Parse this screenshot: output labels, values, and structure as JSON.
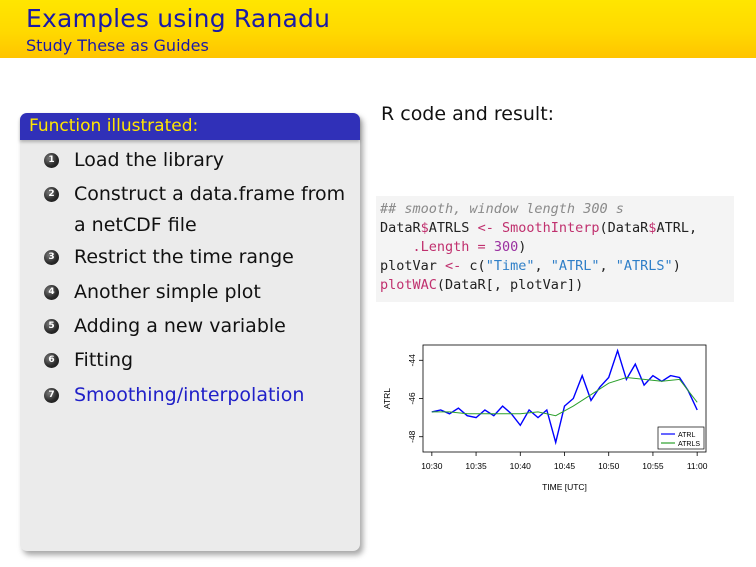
{
  "slide": {
    "title": "Examples using Ranadu",
    "subtitle": "Study These as Guides"
  },
  "block": {
    "title": "Function illustrated:",
    "items": [
      {
        "num": "1",
        "lines": [
          "Load the library"
        ]
      },
      {
        "num": "2",
        "lines": [
          "Construct a data.frame from",
          "a netCDF file"
        ]
      },
      {
        "num": "3",
        "lines": [
          "Restrict the time range"
        ]
      },
      {
        "num": "4",
        "lines": [
          "Another simple plot"
        ]
      },
      {
        "num": "5",
        "lines": [
          "Adding a new variable"
        ]
      },
      {
        "num": "6",
        "lines": [
          "Fitting"
        ]
      },
      {
        "num": "7",
        "lines": [
          "Smoothing/interpolation"
        ]
      }
    ],
    "active_index": 6
  },
  "code_label": "R code and result:",
  "code": {
    "line1": "## smooth, window length 300 s",
    "line2": [
      "DataR",
      "$",
      "ATRLS ",
      "<-",
      " ",
      "SmoothInterp",
      "(DataR",
      "$",
      "ATRL,"
    ],
    "line3": [
      "    .Length ",
      "=",
      " ",
      "300",
      ")"
    ],
    "line4": [
      "plotVar ",
      "<-",
      " c(",
      "\"Time\"",
      ", ",
      "\"ATRL\"",
      ", ",
      "\"ATRLS\"",
      ")"
    ],
    "line5": [
      "plotWAC",
      "(DataR[, plotVar])"
    ]
  },
  "colors": {
    "header_yellow": "#ffd900",
    "title_blue": "#1a1aa8",
    "block_title_bg": "#3030b8",
    "block_title_text": "#ffe600",
    "active_item": "#2020c8",
    "series_ATRL": "#0000ff",
    "series_ATRLS": "#2ca02c"
  },
  "chart_data": {
    "type": "line",
    "xlabel": "TIME [UTC]",
    "ylabel": "ATRL",
    "x_ticks": [
      "10:30",
      "10:35",
      "10:40",
      "10:45",
      "10:50",
      "10:55",
      "11:00"
    ],
    "y_ticks": [
      "-44",
      "-46",
      "-48"
    ],
    "xlim": [
      "10:29",
      "11:01"
    ],
    "ylim": [
      -48.8,
      -43.2
    ],
    "legend_position": "bottom-right",
    "series": [
      {
        "name": "ATRL",
        "x": [
          0,
          1,
          2,
          3,
          4,
          5,
          6,
          7,
          8,
          9,
          10,
          11,
          12,
          13,
          14,
          15,
          16,
          17,
          18,
          19,
          20,
          21,
          22,
          23,
          24,
          25,
          26,
          27,
          28,
          29,
          30
        ],
        "values": [
          -46.7,
          -46.6,
          -46.8,
          -46.5,
          -46.9,
          -47.0,
          -46.6,
          -46.9,
          -46.4,
          -46.8,
          -47.4,
          -46.6,
          -47.0,
          -46.6,
          -48.3,
          -46.4,
          -46.0,
          -44.8,
          -46.1,
          -45.4,
          -44.9,
          -43.5,
          -45.0,
          -44.2,
          -45.3,
          -44.8,
          -45.1,
          -44.8,
          -44.9,
          -45.6,
          -46.6
        ]
      },
      {
        "name": "ATRLS",
        "x": [
          0,
          2,
          4,
          6,
          8,
          10,
          12,
          14,
          16,
          18,
          20,
          22,
          24,
          26,
          28,
          30
        ],
        "values": [
          -46.7,
          -46.7,
          -46.8,
          -46.8,
          -46.8,
          -46.8,
          -46.7,
          -46.9,
          -46.4,
          -45.8,
          -45.2,
          -44.9,
          -45.0,
          -45.1,
          -45.0,
          -46.2
        ]
      }
    ]
  }
}
